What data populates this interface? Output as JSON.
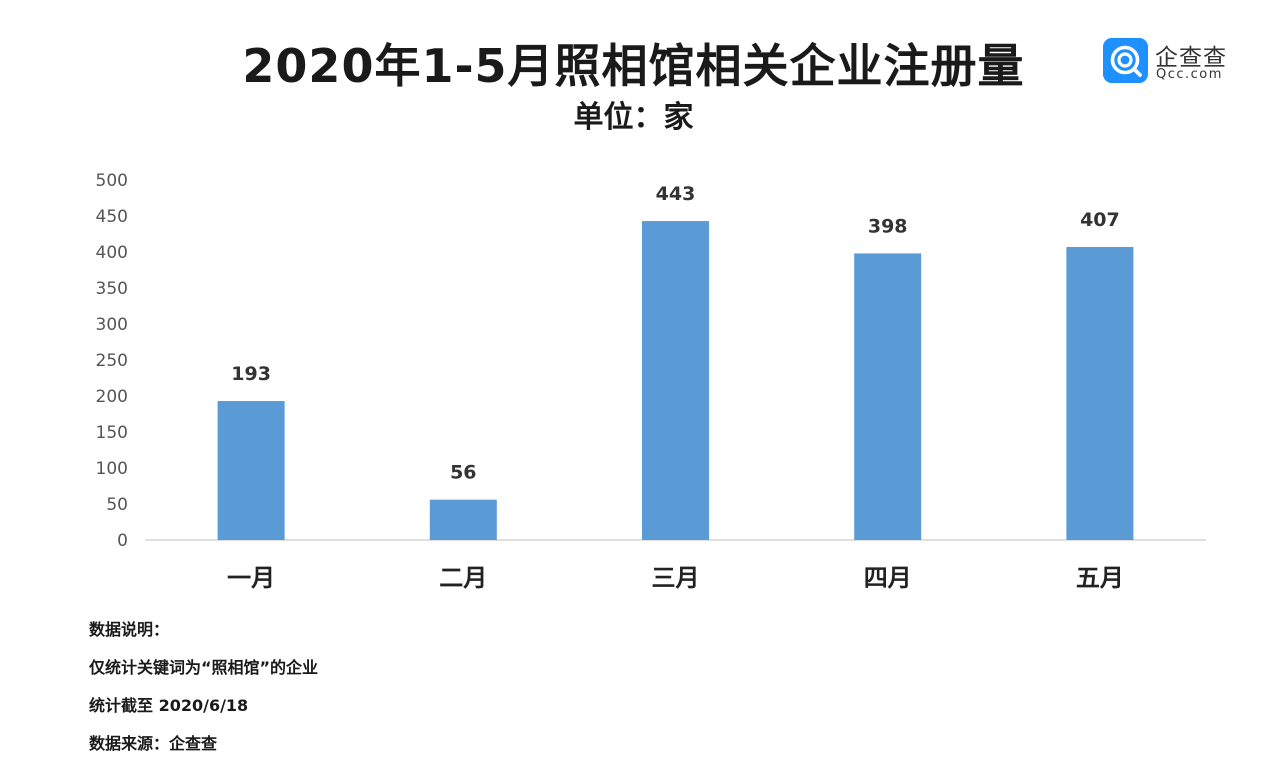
{
  "header": {
    "title": "2020年1-5月照相馆相关企业注册量",
    "subtitle": "单位：家"
  },
  "logo": {
    "name": "企查查",
    "domain": "Qcc.com",
    "color": "#1e90ff"
  },
  "chart_data": {
    "type": "bar",
    "categories": [
      "一月",
      "二月",
      "三月",
      "四月",
      "五月"
    ],
    "values": [
      193,
      56,
      443,
      398,
      407
    ],
    "data_labels": [
      "193",
      "56",
      "443",
      "398",
      "407"
    ],
    "ylim": [
      0,
      500
    ],
    "yticks": [
      0,
      50,
      100,
      150,
      200,
      250,
      300,
      350,
      400,
      450,
      500
    ],
    "grid": false,
    "bar_color": "#5b9bd5",
    "axis_color": "#bfbfbf"
  },
  "notes": {
    "lines": [
      "数据说明：",
      "仅统计关键词为“照相馆”的企业",
      "统计截至 2020/6/18",
      "数据来源：企查查"
    ]
  }
}
